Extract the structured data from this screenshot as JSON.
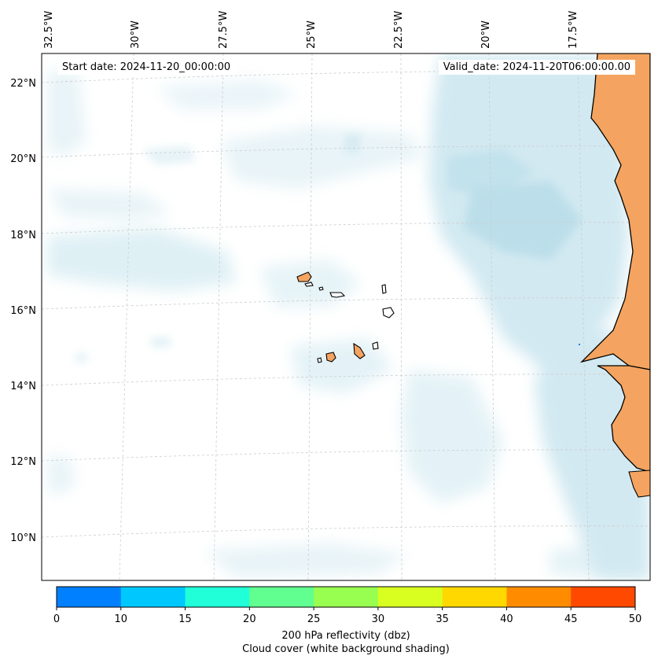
{
  "header": {
    "start_date": "Start date: 2024-11-20_00:00:00",
    "valid_date": "Valid_date: 2024-11-20T06:00:00.00"
  },
  "map": {
    "lon_labels": [
      "32.5°W",
      "30°W",
      "27.5°W",
      "25°W",
      "22.5°W",
      "20°W",
      "17.5°W"
    ],
    "lat_labels": [
      "22°N",
      "20°N",
      "18°N",
      "16°N",
      "14°N",
      "12°N",
      "10°N"
    ],
    "colors": {
      "cloud": "#add8e6",
      "land": "#f4a460",
      "gridline": "#cccccc",
      "coastline": "#000000"
    }
  },
  "colorbar": {
    "ticks": [
      "0",
      "10",
      "15",
      "20",
      "25",
      "30",
      "35",
      "40",
      "45",
      "50"
    ],
    "colors": [
      "#0080ff",
      "#00c8ff",
      "#20ffd8",
      "#60ff90",
      "#98ff50",
      "#d8ff20",
      "#ffd800",
      "#ff8c00",
      "#ff4800"
    ],
    "label_line1": "200 hPa reflectivity (dbz)",
    "label_line2": "Cloud cover (white background shading)"
  }
}
